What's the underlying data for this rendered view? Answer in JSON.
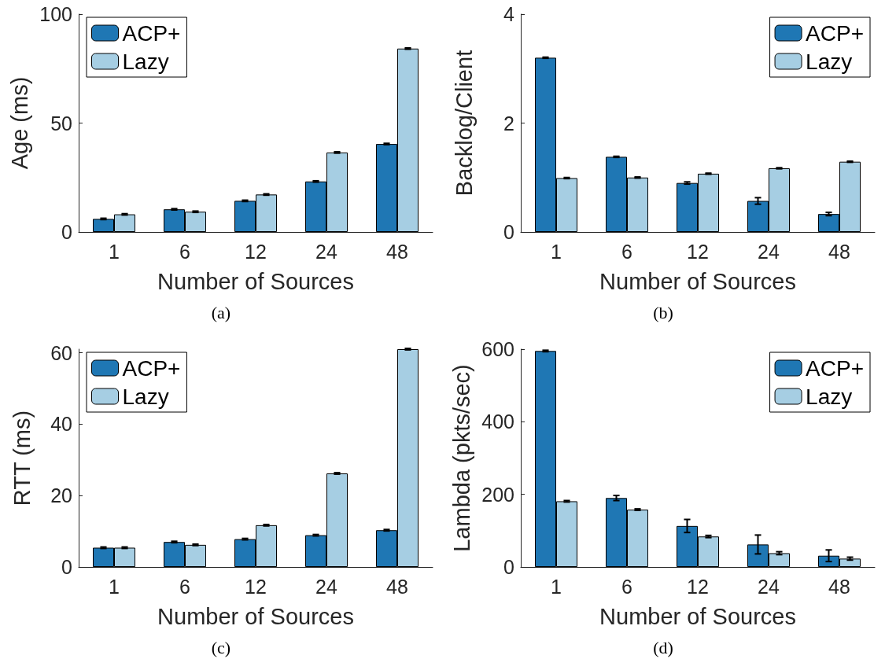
{
  "chart_data": [
    {
      "type": "bar",
      "categories": [
        "1",
        "6",
        "12",
        "24",
        "48"
      ],
      "xlabel": "Number of Sources",
      "ylabel": "Age (ms)",
      "annotations": [
        "(a)"
      ],
      "ylim": [
        0,
        100
      ],
      "yticks": [
        0,
        50,
        100
      ],
      "legend": "top left",
      "grid": false,
      "series": [
        {
          "name": "ACP+",
          "color": "#1f77b4",
          "values": [
            6,
            10.4,
            14.3,
            23.2,
            40.4
          ],
          "errors": [
            0.3,
            0.3,
            0.3,
            0.3,
            0.3
          ]
        },
        {
          "name": "Lazy",
          "color": "#a6cee3",
          "values": [
            8.1,
            9.3,
            17.2,
            36.5,
            84.2
          ],
          "errors": [
            0.3,
            0.3,
            0.3,
            0.3,
            0.3
          ]
        }
      ]
    },
    {
      "type": "bar",
      "categories": [
        "1",
        "6",
        "12",
        "24",
        "48"
      ],
      "xlabel": "Number of Sources",
      "ylabel": "Backlog/Client",
      "annotations": [
        "(b)"
      ],
      "ylim": [
        0,
        4
      ],
      "yticks": [
        0,
        2,
        4
      ],
      "legend": "top right",
      "grid": false,
      "series": [
        {
          "name": "ACP+",
          "color": "#1f77b4",
          "values": [
            3.2,
            1.38,
            0.9,
            0.57,
            0.33
          ],
          "errors": [
            0.01,
            0.01,
            0.02,
            0.06,
            0.03
          ]
        },
        {
          "name": "Lazy",
          "color": "#a6cee3",
          "values": [
            0.99,
            1.0,
            1.07,
            1.17,
            1.29
          ],
          "errors": [
            0.01,
            0.01,
            0.01,
            0.01,
            0.01
          ]
        }
      ]
    },
    {
      "type": "bar",
      "categories": [
        "1",
        "6",
        "12",
        "24",
        "48"
      ],
      "xlabel": "Number of Sources",
      "ylabel": "RTT (ms)",
      "annotations": [
        "(c)"
      ],
      "ylim": [
        0,
        61
      ],
      "yticks": [
        0,
        20,
        40,
        60
      ],
      "legend": "top left",
      "grid": false,
      "series": [
        {
          "name": "ACP+",
          "color": "#1f77b4",
          "values": [
            5.4,
            7.0,
            7.8,
            8.9,
            10.3
          ],
          "errors": [
            0.2,
            0.2,
            0.2,
            0.2,
            0.2
          ]
        },
        {
          "name": "Lazy",
          "color": "#a6cee3",
          "values": [
            5.4,
            6.2,
            11.7,
            26.2,
            61.0
          ],
          "errors": [
            0.2,
            0.2,
            0.2,
            0.2,
            0.2
          ]
        }
      ]
    },
    {
      "type": "bar",
      "categories": [
        "1",
        "6",
        "12",
        "24",
        "48"
      ],
      "xlabel": "Number of Sources",
      "ylabel": "Lambda (pkts/sec)",
      "annotations": [
        "(d)"
      ],
      "ylim": [
        0,
        600
      ],
      "yticks": [
        0,
        200,
        400,
        600
      ],
      "legend": "top right",
      "grid": false,
      "series": [
        {
          "name": "ACP+",
          "color": "#1f77b4",
          "values": [
            595,
            190,
            113,
            62,
            31
          ],
          "errors": [
            2,
            7,
            18,
            26,
            16
          ]
        },
        {
          "name": "Lazy",
          "color": "#a6cee3",
          "values": [
            181,
            158,
            84,
            38,
            23
          ],
          "errors": [
            2,
            2,
            3,
            4,
            4
          ]
        }
      ]
    }
  ]
}
